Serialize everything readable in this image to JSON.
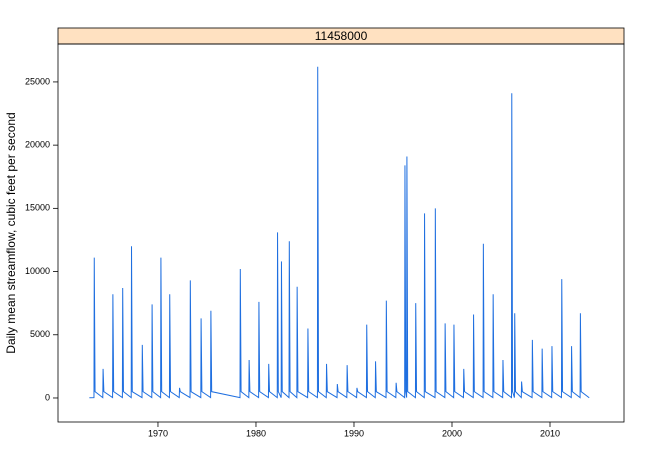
{
  "chart_data": {
    "type": "line",
    "strip": "11458000",
    "ylabel": "Daily mean streamflow, cubic feet per second",
    "color": "#1f6fe0",
    "xlim": [
      1959.8,
      2017.55
    ],
    "xticks": [
      1970,
      1980,
      1990,
      2000,
      2010
    ],
    "ylim": [
      -1900,
      28000
    ],
    "yticks": [
      0,
      5000,
      10000,
      15000,
      20000,
      25000
    ],
    "x": [
      1963.0,
      1963.47,
      1963.5,
      1963.58,
      1964.37,
      1964.4,
      1964.48,
      1965.37,
      1965.4,
      1965.48,
      1966.37,
      1966.4,
      1966.48,
      1967.27,
      1967.3,
      1967.38,
      1968.37,
      1968.4,
      1968.48,
      1969.37,
      1969.4,
      1969.48,
      1970.27,
      1970.3,
      1970.38,
      1971.17,
      1971.2,
      1971.28,
      1972.17,
      1972.2,
      1972.28,
      1973.27,
      1973.3,
      1973.38,
      1974.37,
      1974.4,
      1974.48,
      1975.37,
      1975.4,
      1975.48,
      1978.37,
      1978.4,
      1978.48,
      1979.27,
      1979.3,
      1979.38,
      1980.27,
      1980.3,
      1980.38,
      1981.27,
      1981.3,
      1981.38,
      1982.17,
      1982.2,
      1982.28,
      1982.57,
      1982.6,
      1982.68,
      1983.37,
      1983.4,
      1983.48,
      1984.17,
      1984.2,
      1984.28,
      1985.27,
      1985.3,
      1985.38,
      1986.27,
      1986.3,
      1986.38,
      1987.17,
      1987.2,
      1987.28,
      1988.27,
      1988.3,
      1988.38,
      1989.27,
      1989.3,
      1989.38,
      1990.27,
      1990.3,
      1990.38,
      1991.27,
      1991.3,
      1991.38,
      1992.17,
      1992.2,
      1992.28,
      1993.27,
      1993.3,
      1993.38,
      1994.27,
      1994.3,
      1994.38,
      1995.17,
      1995.2,
      1995.28,
      1995.37,
      1995.4,
      1995.48,
      1996.27,
      1996.3,
      1996.38,
      1997.17,
      1997.2,
      1997.28,
      1998.27,
      1998.3,
      1998.38,
      1999.27,
      1999.3,
      1999.38,
      2000.17,
      2000.2,
      2000.28,
      2001.17,
      2001.2,
      2001.28,
      2002.17,
      2002.2,
      2002.28,
      2003.17,
      2003.2,
      2003.28,
      2004.17,
      2004.2,
      2004.28,
      2005.17,
      2005.2,
      2005.28,
      2006.07,
      2006.1,
      2006.18,
      2006.37,
      2006.4,
      2006.48,
      2007.07,
      2007.1,
      2007.18,
      2008.17,
      2008.2,
      2008.28,
      2009.17,
      2009.2,
      2009.28,
      2010.17,
      2010.2,
      2010.28,
      2011.17,
      2011.2,
      2011.28,
      2012.17,
      2012.2,
      2012.28,
      2013.07,
      2013.1,
      2013.18,
      2014.0
    ],
    "values": [
      20,
      30,
      11100,
      500,
      30,
      2300,
      500,
      30,
      8200,
      500,
      30,
      8700,
      500,
      30,
      12000,
      500,
      30,
      4200,
      500,
      30,
      7400,
      500,
      30,
      11100,
      500,
      30,
      8200,
      500,
      30,
      800,
      500,
      30,
      9300,
      500,
      30,
      6300,
      500,
      30,
      6900,
      500,
      30,
      10200,
      500,
      30,
      3000,
      500,
      30,
      7600,
      500,
      30,
      2700,
      500,
      30,
      13100,
      500,
      30,
      10800,
      500,
      30,
      12400,
      500,
      30,
      8800,
      500,
      30,
      5500,
      500,
      30,
      26200,
      500,
      30,
      2700,
      500,
      30,
      1100,
      500,
      30,
      2600,
      500,
      30,
      800,
      500,
      30,
      5800,
      500,
      30,
      2900,
      500,
      30,
      7700,
      500,
      30,
      1200,
      500,
      30,
      18400,
      500,
      30,
      19100,
      500,
      30,
      7500,
      500,
      30,
      14600,
      500,
      30,
      15000,
      500,
      30,
      5900,
      500,
      30,
      5800,
      500,
      30,
      2300,
      500,
      30,
      6600,
      500,
      30,
      12200,
      500,
      30,
      8200,
      500,
      30,
      3000,
      500,
      30,
      24100,
      500,
      30,
      6700,
      500,
      30,
      1300,
      500,
      30,
      4600,
      500,
      30,
      3900,
      500,
      30,
      4100,
      500,
      30,
      9400,
      500,
      30,
      4100,
      500,
      30,
      6700,
      500,
      20
    ]
  }
}
